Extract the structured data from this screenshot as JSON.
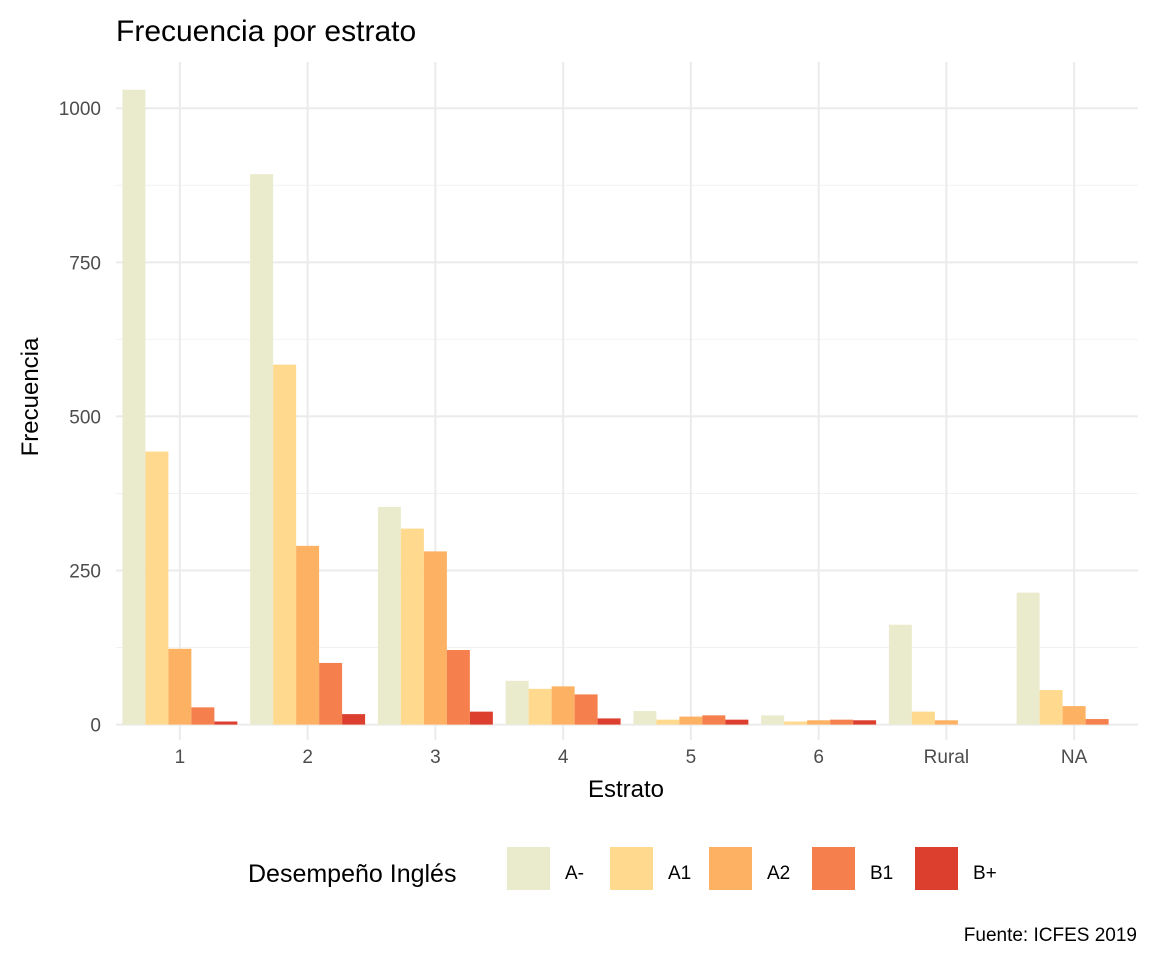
{
  "chart_data": {
    "type": "bar",
    "title": "Frecuencia por estrato",
    "xlabel": "Estrato",
    "ylabel": "Frecuencia",
    "categories": [
      "1",
      "2",
      "3",
      "4",
      "5",
      "6",
      "Rural",
      "NA"
    ],
    "ylim": [
      -25,
      1075
    ],
    "yticks": [
      0,
      250,
      500,
      750,
      1000
    ],
    "grid": true,
    "legend": {
      "title": "Desempeño Inglés",
      "position": "bottom"
    },
    "series": [
      {
        "name": "A-",
        "color": "#eaebcc",
        "values": [
          1030,
          893,
          353,
          71,
          22,
          15,
          162,
          214
        ]
      },
      {
        "name": "A1",
        "color": "#fed98e",
        "values": [
          443,
          584,
          318,
          58,
          8,
          5,
          21,
          56
        ]
      },
      {
        "name": "A2",
        "color": "#fdb163",
        "values": [
          123,
          290,
          281,
          62,
          13,
          7,
          7,
          30
        ]
      },
      {
        "name": "B1",
        "color": "#f6804d",
        "values": [
          28,
          100,
          121,
          49,
          15,
          8,
          null,
          9
        ]
      },
      {
        "name": "B+",
        "color": "#dc3f2e",
        "values": [
          5,
          17,
          21,
          10,
          8,
          7,
          null,
          null
        ]
      }
    ],
    "caption": "Fuente: ICFES 2019"
  }
}
